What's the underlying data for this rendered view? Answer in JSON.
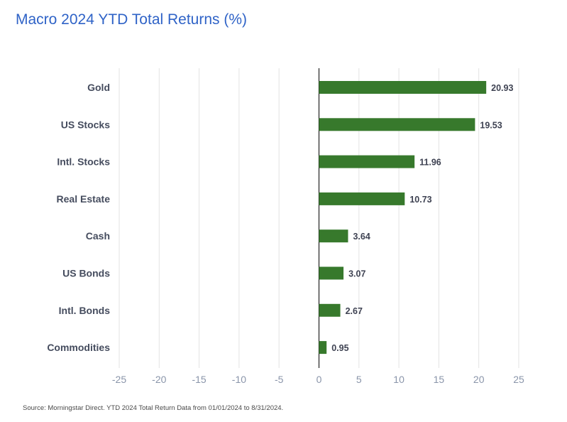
{
  "title": "Macro 2024 YTD Total Returns (%)",
  "footer": "Source: Morningstar Direct. YTD 2024 Total Return Data from 01/01/2024 to 8/31/2024.",
  "colors": {
    "bar": "#37792c",
    "title": "#2f63c7",
    "grid": "#e3e3e3",
    "axis": "#222222",
    "category_label": "#454c5e",
    "value_label": "#3e4252",
    "tick_label": "#8a95aa"
  },
  "chart_data": {
    "type": "bar",
    "orientation": "horizontal",
    "title": "Macro 2024 YTD Total Returns (%)",
    "categories": [
      "Gold",
      "US Stocks",
      "Intl. Stocks",
      "Real Estate",
      "Cash",
      "US Bonds",
      "Intl. Bonds",
      "Commodities"
    ],
    "values": [
      20.93,
      19.53,
      11.96,
      10.73,
      3.64,
      3.07,
      2.67,
      0.95
    ],
    "value_labels": [
      "20.93",
      "19.53",
      "11.96",
      "10.73",
      "3.64",
      "3.07",
      "2.67",
      "0.95"
    ],
    "xlim": [
      -25,
      25
    ],
    "xticks": [
      -25,
      -20,
      -15,
      -10,
      -5,
      0,
      5,
      10,
      15,
      20,
      25
    ],
    "xtick_labels": [
      "-25",
      "-20",
      "-15",
      "-10",
      "-5",
      "0",
      "5",
      "10",
      "15",
      "20",
      "25"
    ],
    "grid": true,
    "xlabel": "",
    "ylabel": ""
  }
}
